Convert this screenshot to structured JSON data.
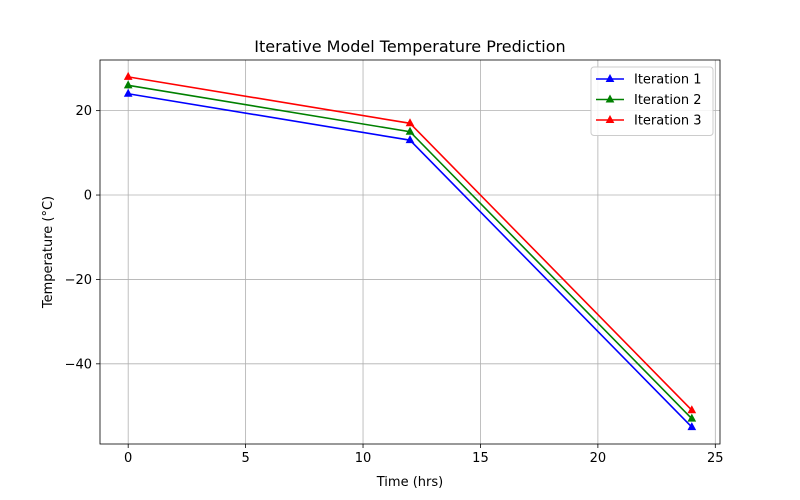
{
  "chart_data": {
    "type": "line",
    "title": "Iterative Model Temperature Prediction",
    "xlabel": "Time (hrs)",
    "ylabel": "Temperature (°C)",
    "xlim": [
      -1.2,
      25.2
    ],
    "ylim": [
      -59,
      32
    ],
    "xticks": [
      0,
      5,
      10,
      15,
      20,
      25
    ],
    "xtick_labels": [
      "0",
      "5",
      "10",
      "15",
      "20",
      "25"
    ],
    "yticks": [
      -40,
      -20,
      0,
      20
    ],
    "ytick_labels": [
      "−40",
      "−20",
      "0",
      "20"
    ],
    "grid": true,
    "legend_position": "top-right",
    "marker": "triangle-up",
    "x": [
      0,
      12,
      24
    ],
    "series": [
      {
        "name": "Iteration 1",
        "color": "#0000ff",
        "values": [
          24,
          13,
          -55
        ]
      },
      {
        "name": "Iteration 2",
        "color": "#008000",
        "values": [
          26,
          15,
          -53
        ]
      },
      {
        "name": "Iteration 3",
        "color": "#ff0000",
        "values": [
          28,
          17,
          -51
        ]
      }
    ]
  }
}
